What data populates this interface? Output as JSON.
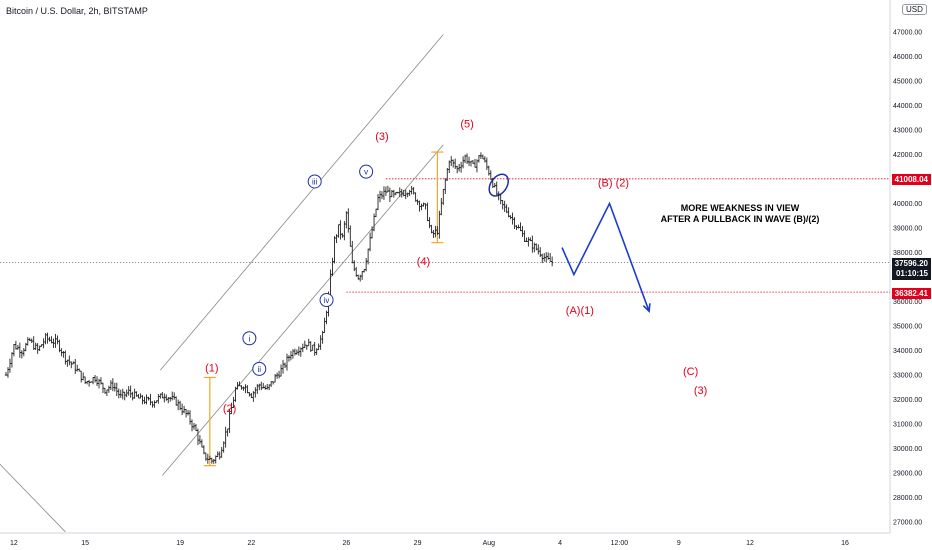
{
  "header": {
    "title": "Bitcoin / U.S. Dollar, 2h, BITSTAMP",
    "currency": "USD"
  },
  "annotation": {
    "line1": "MORE WEAKNESS IN VIEW",
    "line2": "AFTER A PULLBACK IN WAVE (B)/(2)"
  },
  "badges": {
    "level_high": "41008.04",
    "current_price": "37596.20",
    "countdown": "01:10:15",
    "level_low": "36382.41"
  },
  "colors": {
    "wave_label": "#e0001b",
    "roman_label": "#1f2fa8",
    "projection": "#1b3bd6",
    "fib": "#f5a623",
    "level_line": "#e0001b",
    "badge_red": "#e0001b",
    "badge_dark": "#131722"
  },
  "chart_data": {
    "type": "ohlc",
    "ylim": [
      26600,
      48000
    ],
    "y_ticks": [
      27000,
      28000,
      29000,
      30000,
      31000,
      32000,
      33000,
      34000,
      35000,
      36000,
      37000,
      38000,
      39000,
      40000,
      41000,
      42000,
      43000,
      44000,
      45000,
      46000,
      47000
    ],
    "x_ticks": [
      {
        "label": "12",
        "t": 4
      },
      {
        "label": "15",
        "t": 40
      },
      {
        "label": "19",
        "t": 88
      },
      {
        "label": "22",
        "t": 124
      },
      {
        "label": "26",
        "t": 172
      },
      {
        "label": "29",
        "t": 208
      },
      {
        "label": "Aug",
        "t": 244
      },
      {
        "label": "4",
        "t": 280
      },
      {
        "label": "12:00",
        "t": 310
      },
      {
        "label": "9",
        "t": 340
      },
      {
        "label": "12",
        "t": 376
      },
      {
        "label": "16",
        "t": 424
      }
    ],
    "price_path": [
      [
        0,
        33000
      ],
      [
        4,
        34200
      ],
      [
        8,
        34000
      ],
      [
        12,
        34400
      ],
      [
        16,
        34000
      ],
      [
        20,
        34500
      ],
      [
        26,
        34300
      ],
      [
        30,
        33700
      ],
      [
        35,
        33300
      ],
      [
        40,
        32700
      ],
      [
        45,
        32900
      ],
      [
        50,
        32400
      ],
      [
        54,
        32600
      ],
      [
        58,
        32100
      ],
      [
        62,
        32300
      ],
      [
        68,
        32000
      ],
      [
        74,
        31900
      ],
      [
        80,
        32200
      ],
      [
        86,
        31900
      ],
      [
        92,
        31300
      ],
      [
        96,
        30700
      ],
      [
        100,
        29700
      ],
      [
        104,
        29500
      ],
      [
        108,
        29800
      ],
      [
        112,
        30900
      ],
      [
        116,
        32400
      ],
      [
        120,
        32600
      ],
      [
        124,
        32200
      ],
      [
        128,
        32600
      ],
      [
        132,
        32400
      ],
      [
        136,
        32900
      ],
      [
        140,
        33300
      ],
      [
        144,
        33900
      ],
      [
        148,
        34100
      ],
      [
        152,
        34300
      ],
      [
        156,
        34000
      ],
      [
        160,
        34600
      ],
      [
        163,
        36200
      ],
      [
        166,
        38500
      ],
      [
        168,
        39000
      ],
      [
        170,
        38600
      ],
      [
        172,
        39600
      ],
      [
        175,
        37500
      ],
      [
        178,
        37000
      ],
      [
        181,
        37400
      ],
      [
        184,
        38500
      ],
      [
        188,
        40200
      ],
      [
        192,
        40500
      ],
      [
        196,
        40300
      ],
      [
        200,
        40400
      ],
      [
        204,
        40600
      ],
      [
        208,
        40100
      ],
      [
        212,
        39800
      ],
      [
        215,
        38700
      ],
      [
        218,
        38900
      ],
      [
        221,
        40500
      ],
      [
        224,
        41800
      ],
      [
        228,
        41400
      ],
      [
        232,
        41900
      ],
      [
        236,
        41500
      ],
      [
        240,
        42000
      ],
      [
        244,
        41300
      ],
      [
        247,
        40600
      ],
      [
        250,
        40000
      ],
      [
        254,
        39600
      ],
      [
        258,
        39100
      ],
      [
        262,
        38600
      ],
      [
        266,
        38300
      ],
      [
        270,
        38000
      ],
      [
        273,
        37700
      ],
      [
        276,
        37596
      ]
    ],
    "projection": [
      [
        281,
        38200
      ],
      [
        287,
        37100
      ],
      [
        305,
        40000
      ],
      [
        325,
        35600
      ]
    ],
    "channel_lines": [
      [
        [
          78,
          33200
        ],
        [
          221,
          46900
        ]
      ],
      [
        [
          79,
          28900
        ],
        [
          221,
          42400
        ]
      ],
      [
        [
          -6,
          29600
        ],
        [
          30,
          26600
        ]
      ]
    ],
    "levels": [
      {
        "price": 41008.04,
        "from_t": 192
      },
      {
        "price": 36382.41,
        "from_t": 172
      },
      {
        "price": 37596.2,
        "from_t": -6
      }
    ],
    "fib_bars": [
      {
        "t": 103,
        "from": 29300,
        "to": 32900
      },
      {
        "t": 218,
        "from": 38400,
        "to": 42100
      }
    ],
    "ellipse": {
      "t": 249,
      "price": 40750
    },
    "wave_labels": [
      {
        "text": "(1)",
        "t": 104,
        "price": 33150
      },
      {
        "text": "(2)",
        "t": 113,
        "price": 31500
      },
      {
        "text": "(3)",
        "t": 190,
        "price": 42600
      },
      {
        "text": "(4)",
        "t": 211,
        "price": 37500
      },
      {
        "text": "(5)",
        "t": 233,
        "price": 43100
      },
      {
        "text": "(A)(1)",
        "t": 290,
        "price": 35480
      },
      {
        "text": "(B) (2)",
        "t": 307,
        "price": 40700
      },
      {
        "text": "(C)",
        "t": 346,
        "price": 33000
      },
      {
        "text": "(3)",
        "t": 351,
        "price": 32230
      }
    ],
    "roman_labels": [
      {
        "text": "i",
        "t": 123,
        "price": 34500
      },
      {
        "text": "ii",
        "t": 128,
        "price": 33250
      },
      {
        "text": "iii",
        "t": 156,
        "price": 40900
      },
      {
        "text": "iv",
        "t": 162,
        "price": 36060
      },
      {
        "text": "v",
        "t": 182,
        "price": 41300
      }
    ]
  }
}
